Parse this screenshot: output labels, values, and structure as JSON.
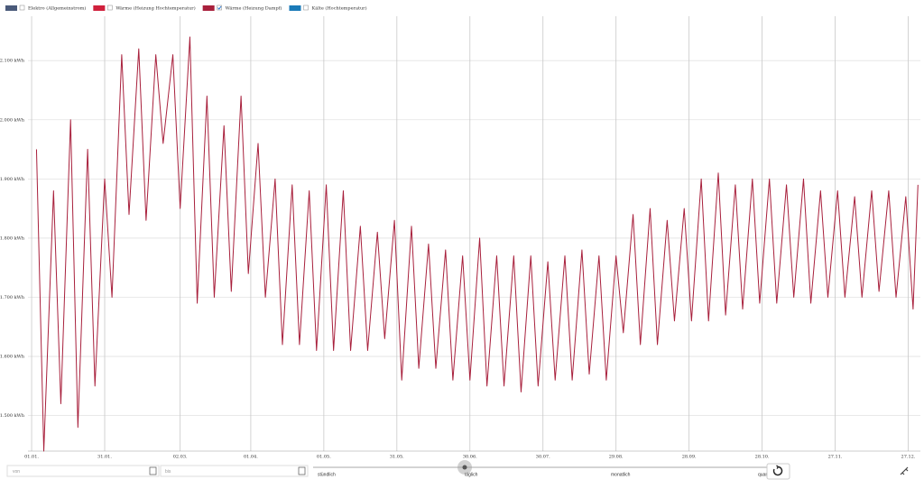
{
  "chart_data": {
    "type": "line",
    "legend": [
      {
        "name": "Elektro (Allgemeinstrom)",
        "color": "#4a5a7a",
        "checked": false
      },
      {
        "name": "Wärme (Heizung Hochtemperatur)",
        "color": "#d0203c",
        "checked": false
      },
      {
        "name": "Wärme (Heizung Dampf)",
        "color": "#a8203c",
        "checked": true
      },
      {
        "name": "Kälte (Hochtemperatur)",
        "color": "#1a7ab8",
        "checked": false
      }
    ],
    "color": "#a8203c",
    "x": [
      2,
      5,
      9,
      12,
      16,
      19,
      23,
      26,
      30,
      33,
      37,
      40,
      44,
      47,
      51,
      54,
      58,
      61,
      65,
      68,
      72,
      75,
      79,
      82,
      86,
      89,
      93,
      96,
      100,
      103,
      107,
      110,
      114,
      117,
      121,
      124,
      128,
      131,
      135,
      138,
      142,
      145,
      149,
      152,
      156,
      159,
      163,
      166,
      170,
      173,
      177,
      180,
      184,
      187,
      191,
      194,
      198,
      201,
      205,
      208,
      212,
      215,
      219,
      222,
      226,
      229,
      233,
      236,
      240,
      243,
      247,
      250,
      254,
      257,
      261,
      264,
      268,
      271,
      275,
      278,
      282,
      285,
      289,
      292,
      296,
      299,
      303,
      306,
      310,
      313,
      317,
      320,
      324,
      327,
      331,
      334,
      338,
      341,
      345,
      348,
      352,
      355,
      359,
      362,
      364
    ],
    "values": [
      1950,
      1440,
      1880,
      1520,
      2000,
      1480,
      1950,
      1550,
      1900,
      1700,
      2110,
      1840,
      2120,
      1830,
      2110,
      1960,
      2110,
      1850,
      2140,
      1690,
      2040,
      1700,
      1990,
      1710,
      2040,
      1740,
      1960,
      1700,
      1900,
      1620,
      1890,
      1620,
      1880,
      1610,
      1890,
      1610,
      1880,
      1610,
      1820,
      1610,
      1810,
      1630,
      1830,
      1560,
      1820,
      1580,
      1790,
      1580,
      1780,
      1560,
      1770,
      1560,
      1800,
      1550,
      1770,
      1550,
      1770,
      1540,
      1770,
      1550,
      1760,
      1560,
      1770,
      1560,
      1780,
      1570,
      1770,
      1560,
      1770,
      1640,
      1840,
      1620,
      1850,
      1620,
      1830,
      1660,
      1850,
      1660,
      1900,
      1660,
      1910,
      1670,
      1890,
      1680,
      1900,
      1690,
      1900,
      1690,
      1890,
      1700,
      1900,
      1690,
      1880,
      1700,
      1880,
      1700,
      1870,
      1700,
      1880,
      1710,
      1880,
      1700,
      1870,
      1680,
      1890
    ],
    "xlim": [
      -1.5,
      365
    ],
    "xticks": [
      {
        "value": 0,
        "label": "01.01."
      },
      {
        "value": 30,
        "label": "31.01."
      },
      {
        "value": 61,
        "label": "02.03."
      },
      {
        "value": 90,
        "label": "01.04."
      },
      {
        "value": 120,
        "label": "01.05."
      },
      {
        "value": 150,
        "label": "31.05."
      },
      {
        "value": 180,
        "label": "30.06."
      },
      {
        "value": 210,
        "label": "30.07."
      },
      {
        "value": 240,
        "label": "29.08."
      },
      {
        "value": 270,
        "label": "28.09."
      },
      {
        "value": 300,
        "label": "28.10."
      },
      {
        "value": 330,
        "label": "27.11."
      },
      {
        "value": 360,
        "label": "27.12."
      }
    ],
    "ylim": [
      1440,
      2175
    ],
    "yticks": [
      {
        "value": 1500,
        "label": "1.500 kWh"
      },
      {
        "value": 1600,
        "label": "1.600 kWh"
      },
      {
        "value": 1700,
        "label": "1.700 kWh"
      },
      {
        "value": 1800,
        "label": "1.800 kWh"
      },
      {
        "value": 1900,
        "label": "1.900 kWh"
      },
      {
        "value": 2000,
        "label": "2.000 kWh"
      },
      {
        "value": 2100,
        "label": "2.100 kWh"
      }
    ],
    "grid": true
  },
  "controls": {
    "from_placeholder": "von",
    "to_placeholder": "bis",
    "resolutions": [
      "stündlich",
      "täglich",
      "monatlich",
      "quar"
    ],
    "selected_resolution": 1
  }
}
